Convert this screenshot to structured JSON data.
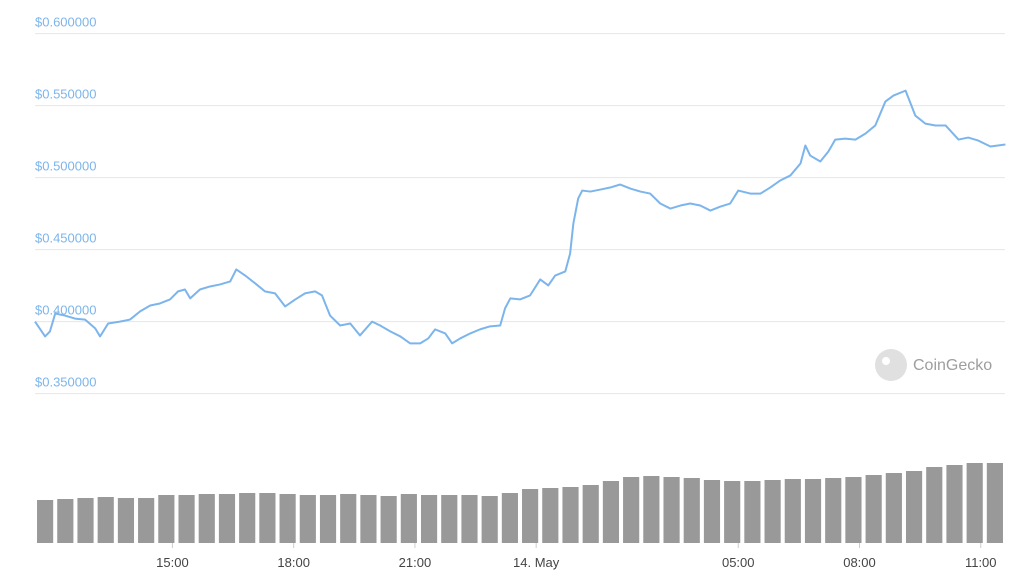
{
  "chart_data": {
    "type": "line",
    "color": "#7cb5ec",
    "watermark": "CoinGecko",
    "xlim": [
      11.6,
      35.6
    ],
    "ylim": [
      0.335,
      0.605
    ],
    "xticks": [
      {
        "value": 15,
        "label": "15:00"
      },
      {
        "value": 18,
        "label": "18:00"
      },
      {
        "value": 21,
        "label": "21:00"
      },
      {
        "value": 24,
        "label": "14. May"
      },
      {
        "value": 29,
        "label": "05:00"
      },
      {
        "value": 32,
        "label": "08:00"
      },
      {
        "value": 35,
        "label": "11:00"
      }
    ],
    "yticks": [
      {
        "value": 0.35,
        "label": "$0.350000"
      },
      {
        "value": 0.4,
        "label": "$0.400000"
      },
      {
        "value": 0.45,
        "label": "$0.450000"
      },
      {
        "value": 0.5,
        "label": "$0.500000"
      },
      {
        "value": 0.55,
        "label": "$0.550000"
      },
      {
        "value": 0.6,
        "label": "$0.600000"
      }
    ],
    "grid": true,
    "x": [
      11.6,
      11.85,
      11.97,
      12.1,
      12.34,
      12.59,
      12.84,
      13.09,
      13.21,
      13.41,
      13.7,
      13.95,
      14.2,
      14.45,
      14.69,
      14.94,
      15.14,
      15.31,
      15.44,
      15.68,
      15.93,
      16.18,
      16.43,
      16.58,
      16.8,
      17.05,
      17.29,
      17.54,
      17.79,
      18.04,
      18.28,
      18.53,
      18.7,
      18.9,
      19.15,
      19.4,
      19.64,
      19.94,
      20.14,
      20.39,
      20.64,
      20.88,
      21.13,
      21.33,
      21.5,
      21.75,
      21.92,
      22.12,
      22.37,
      22.61,
      22.86,
      23.11,
      23.23,
      23.36,
      23.6,
      23.85,
      24.1,
      24.3,
      24.47,
      24.72,
      24.84,
      24.92,
      25.04,
      25.14,
      25.34,
      25.59,
      25.83,
      26.08,
      26.33,
      26.58,
      26.82,
      27.07,
      27.32,
      27.57,
      27.81,
      28.06,
      28.31,
      28.56,
      28.8,
      29.0,
      29.3,
      29.55,
      29.79,
      30.04,
      30.29,
      30.54,
      30.66,
      30.78,
      31.03,
      31.23,
      31.4,
      31.65,
      31.9,
      32.15,
      32.39,
      32.64,
      32.84,
      33.14,
      33.38,
      33.63,
      33.88,
      34.13,
      34.45,
      34.69,
      34.94,
      35.24,
      35.61
    ],
    "values": [
      0.4,
      0.3897,
      0.3932,
      0.4056,
      0.4042,
      0.4021,
      0.4014,
      0.3953,
      0.3897,
      0.3987,
      0.4,
      0.4014,
      0.4071,
      0.4112,
      0.4126,
      0.4154,
      0.421,
      0.4223,
      0.4161,
      0.4223,
      0.4244,
      0.4258,
      0.4279,
      0.4362,
      0.432,
      0.4265,
      0.421,
      0.4196,
      0.4105,
      0.4154,
      0.4196,
      0.421,
      0.4182,
      0.4042,
      0.3973,
      0.3987,
      0.3904,
      0.4,
      0.3973,
      0.3932,
      0.3897,
      0.3849,
      0.3849,
      0.3883,
      0.3946,
      0.3918,
      0.3849,
      0.3883,
      0.3918,
      0.3946,
      0.3967,
      0.3973,
      0.4092,
      0.4161,
      0.4154,
      0.4182,
      0.4293,
      0.4251,
      0.432,
      0.4348,
      0.4473,
      0.4681,
      0.4855,
      0.491,
      0.4903,
      0.4917,
      0.4931,
      0.4952,
      0.4924,
      0.4903,
      0.4889,
      0.482,
      0.4785,
      0.4806,
      0.482,
      0.4806,
      0.4771,
      0.4799,
      0.482,
      0.491,
      0.4889,
      0.4889,
      0.4931,
      0.498,
      0.5015,
      0.5098,
      0.5223,
      0.5153,
      0.5112,
      0.5181,
      0.5264,
      0.5271,
      0.5264,
      0.5306,
      0.5362,
      0.5528,
      0.557,
      0.5604,
      0.5431,
      0.5375,
      0.5362,
      0.5362,
      0.5264,
      0.5278,
      0.5257,
      0.5216,
      0.523
    ],
    "volume": {
      "color": "#999999",
      "ylim": [
        0,
        100
      ],
      "x": [
        11.85,
        12.35,
        12.85,
        13.35,
        13.85,
        14.35,
        14.85,
        15.35,
        15.85,
        16.35,
        16.85,
        17.35,
        17.85,
        18.35,
        18.85,
        19.35,
        19.85,
        20.35,
        20.85,
        21.35,
        21.85,
        22.35,
        22.85,
        23.35,
        23.85,
        24.35,
        24.85,
        25.35,
        25.85,
        26.35,
        26.85,
        27.35,
        27.85,
        28.35,
        28.85,
        29.35,
        29.85,
        30.35,
        30.85,
        31.35,
        31.85,
        32.35,
        32.85,
        33.35,
        33.85,
        34.35,
        34.85,
        35.35
      ],
      "values": [
        43,
        44,
        45,
        46,
        45,
        45,
        48,
        48,
        49,
        49,
        50,
        50,
        49,
        48,
        48,
        49,
        48,
        47,
        49,
        48,
        48,
        48,
        47,
        50,
        54,
        55,
        56,
        58,
        62,
        66,
        67,
        66,
        65,
        63,
        62,
        62,
        63,
        64,
        64,
        65,
        66,
        68,
        70,
        72,
        76,
        78,
        80,
        80
      ]
    }
  }
}
